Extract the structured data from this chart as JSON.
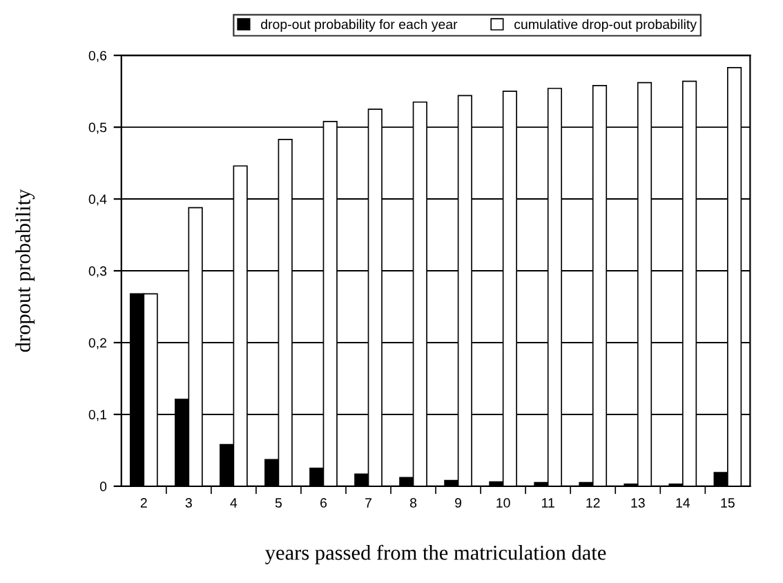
{
  "chart_data": {
    "type": "bar",
    "xlabel": "years passed from the matriculation date",
    "ylabel": "dropout probability",
    "categories": [
      "2",
      "3",
      "4",
      "5",
      "6",
      "7",
      "8",
      "9",
      "10",
      "11",
      "12",
      "13",
      "14",
      "15"
    ],
    "series": [
      {
        "name": "drop-out probability for each year",
        "color": "#000000",
        "values": [
          0.268,
          0.121,
          0.058,
          0.037,
          0.025,
          0.017,
          0.012,
          0.008,
          0.006,
          0.005,
          0.005,
          0.003,
          0.003,
          0.019
        ]
      },
      {
        "name": "cumulative drop-out probability",
        "color": "#ffffff",
        "values": [
          0.268,
          0.388,
          0.446,
          0.483,
          0.508,
          0.525,
          0.535,
          0.544,
          0.55,
          0.554,
          0.558,
          0.562,
          0.564,
          0.583
        ]
      }
    ],
    "ylim": [
      0,
      0.6
    ],
    "yticks": [
      0,
      {
        "value": 0.1,
        "label": "0,1"
      },
      {
        "value": 0.2,
        "label": "0,2"
      },
      {
        "value": 0.3,
        "label": "0,3"
      },
      {
        "value": 0.4,
        "label": "0,4"
      },
      {
        "value": 0.5,
        "label": "0,5"
      },
      {
        "value": 0.6,
        "label": "0,6"
      }
    ],
    "grid": "y",
    "legend": "top"
  }
}
